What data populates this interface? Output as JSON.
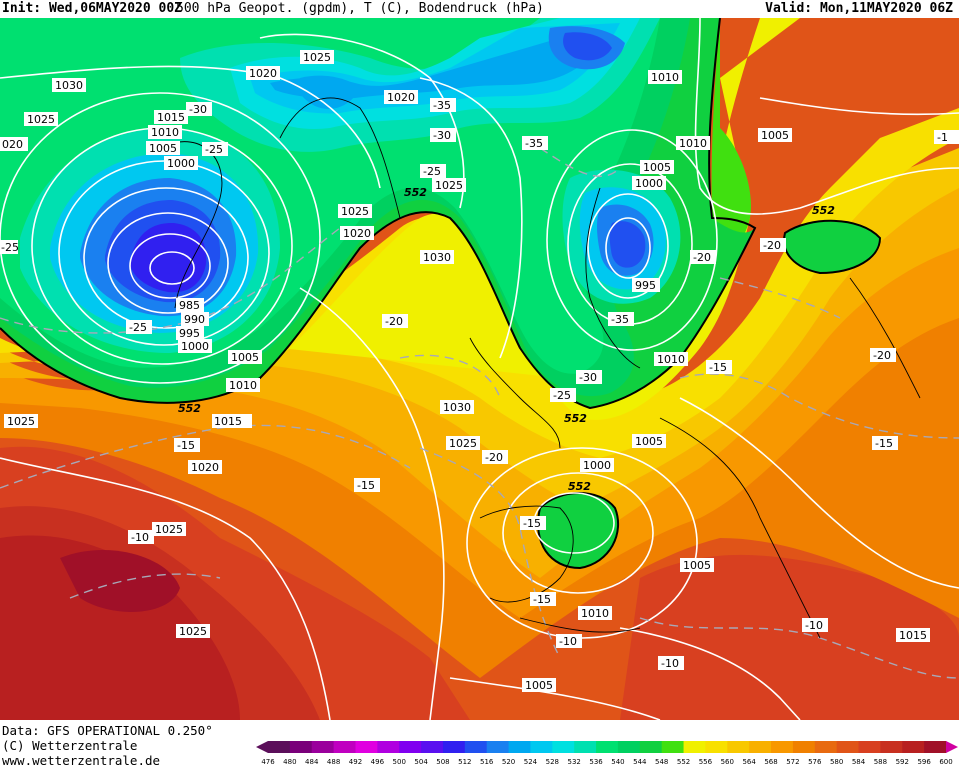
{
  "header": {
    "init": "Init: Wed,06MAY2020 00Z",
    "title": "500 hPa Geopot. (gpdm), T (C), Bodendruck (hPa)",
    "valid": "Valid: Mon,11MAY2020 06Z"
  },
  "credits": {
    "line1": "Data: GFS OPERATIONAL 0.250°",
    "line2": "(C) Wetterzentrale",
    "line3": "www.wetterzentrale.de"
  },
  "colors": {
    "c476": "#5b0f5a",
    "c480": "#7a007a",
    "c484": "#9a009c",
    "c488": "#c000c0",
    "c492": "#e000e0",
    "c496": "#b000e0",
    "c500": "#8000f0",
    "c504": "#5a10f0",
    "c508": "#3020f0",
    "c512": "#2050f0",
    "c516": "#1a80f0",
    "c520": "#00a8f0",
    "c524": "#00c8f0",
    "c528": "#00e0e0",
    "c532": "#00e0b0",
    "c536": "#00e070",
    "c540": "#00d060",
    "c544": "#10d040",
    "c548": "#40e010",
    "c552": "#f0f000",
    "c556": "#f8e000",
    "c560": "#f8c800",
    "c564": "#f8b000",
    "c568": "#f89800",
    "c572": "#f08000",
    "c576": "#e86a10",
    "c580": "#e05418",
    "c584": "#d84020",
    "c588": "#c83020",
    "c592": "#b82020",
    "c596": "#a01028",
    "c600": "#d000a0"
  },
  "colorbar": {
    "ticks": [
      "476",
      "480",
      "484",
      "488",
      "492",
      "496",
      "500",
      "504",
      "508",
      "512",
      "516",
      "520",
      "524",
      "528",
      "532",
      "536",
      "540",
      "544",
      "548",
      "552",
      "556",
      "560",
      "564",
      "568",
      "572",
      "576",
      "580",
      "584",
      "588",
      "592",
      "596",
      "600"
    ]
  },
  "map_labels": {
    "isobars": [
      {
        "text": "1030"
      },
      {
        "text": "1025"
      },
      {
        "text": "020"
      },
      {
        "text": "1015"
      },
      {
        "text": "1010"
      },
      {
        "text": "1005"
      },
      {
        "text": "1000"
      },
      {
        "text": "985"
      },
      {
        "text": "990"
      },
      {
        "text": "995"
      },
      {
        "text": "1000"
      },
      {
        "text": "1005"
      },
      {
        "text": "1010"
      },
      {
        "text": "1015"
      },
      {
        "text": "1020"
      },
      {
        "text": "1025"
      },
      {
        "text": "1025"
      },
      {
        "text": "1020"
      },
      {
        "text": "1025"
      },
      {
        "text": "1025"
      },
      {
        "text": "1020"
      },
      {
        "text": "1020"
      },
      {
        "text": "1025"
      },
      {
        "text": "1030"
      },
      {
        "text": "1010"
      },
      {
        "text": "1010"
      },
      {
        "text": "1005"
      },
      {
        "text": "1000"
      },
      {
        "text": "995"
      },
      {
        "text": "1005"
      },
      {
        "text": "1010"
      },
      {
        "text": "1030"
      },
      {
        "text": "1025"
      },
      {
        "text": "1005"
      },
      {
        "text": "1000"
      },
      {
        "text": "1005"
      },
      {
        "text": "1010"
      },
      {
        "text": "1005"
      },
      {
        "text": "1015"
      },
      {
        "text": "1025"
      }
    ],
    "temps": [
      {
        "text": "-30"
      },
      {
        "text": "-25"
      },
      {
        "text": "-35"
      },
      {
        "text": "-30"
      },
      {
        "text": "-35"
      },
      {
        "text": "-25"
      },
      {
        "text": "-20"
      },
      {
        "text": "-20"
      },
      {
        "text": "-35"
      },
      {
        "text": "-20"
      },
      {
        "text": "-25"
      },
      {
        "text": "-25"
      },
      {
        "text": "-30"
      },
      {
        "text": "-15"
      },
      {
        "text": "-15"
      },
      {
        "text": "-20"
      },
      {
        "text": "-15"
      },
      {
        "text": "-15"
      },
      {
        "text": "-10"
      },
      {
        "text": "-15"
      },
      {
        "text": "-10"
      },
      {
        "text": "-10"
      },
      {
        "text": "-10"
      },
      {
        "text": "-20"
      },
      {
        "text": "-15"
      },
      {
        "text": "-1"
      },
      {
        "text": "-25"
      }
    ],
    "geopotential": [
      {
        "text": "552"
      },
      {
        "text": "552"
      },
      {
        "text": "552"
      },
      {
        "text": "552"
      },
      {
        "text": "552"
      },
      {
        "text": "552"
      }
    ]
  }
}
